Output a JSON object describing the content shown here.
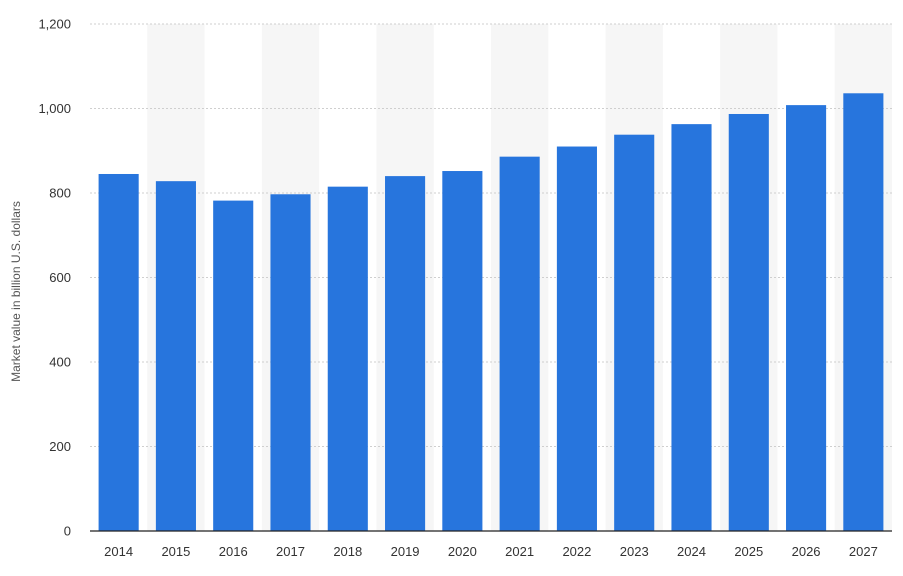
{
  "chart_data": {
    "type": "bar",
    "categories": [
      "2014",
      "2015",
      "2016",
      "2017",
      "2018",
      "2019",
      "2020",
      "2021",
      "2022",
      "2023",
      "2024",
      "2025",
      "2026",
      "2027"
    ],
    "values": [
      845,
      828,
      782,
      797,
      815,
      840,
      852,
      886,
      910,
      938,
      963,
      987,
      1008,
      1036
    ],
    "title": "",
    "xlabel": "",
    "ylabel": "Market value in billion U.S. dollars",
    "ylim": [
      0,
      1200
    ],
    "yticks": [
      0,
      200,
      400,
      600,
      800,
      1000,
      1200
    ],
    "ytick_labels": [
      "0",
      "200",
      "400",
      "600",
      "800",
      "1,000",
      "1,200"
    ],
    "grid": true,
    "alternating_column_bands": true,
    "bar_color": "#2775dd"
  }
}
